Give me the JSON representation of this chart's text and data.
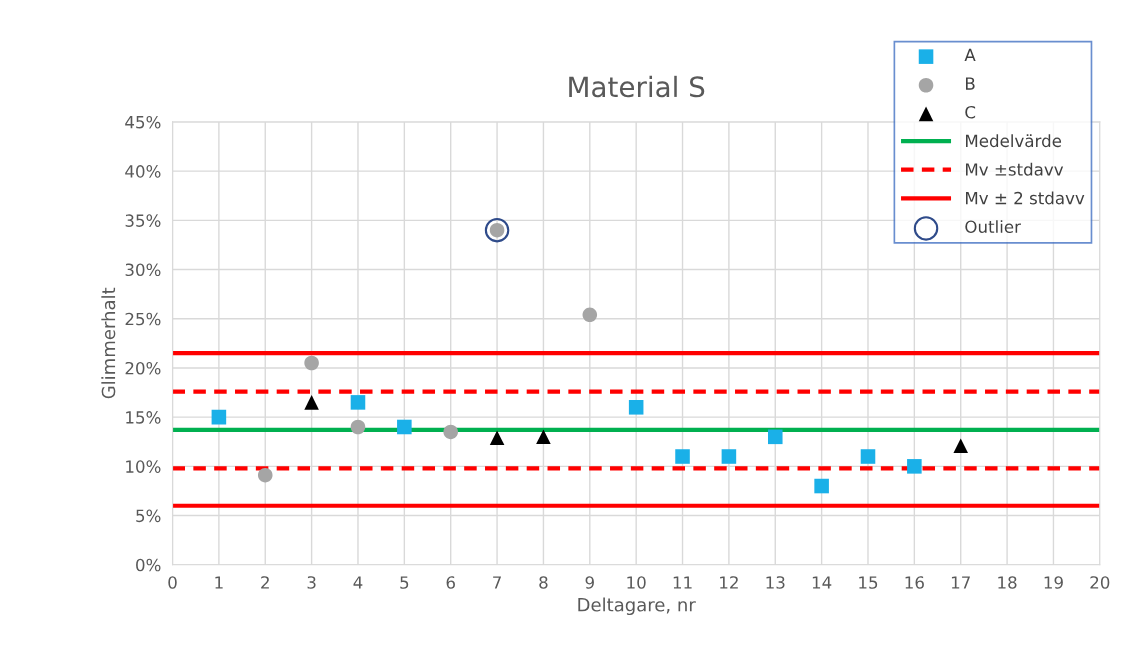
{
  "chart_data": {
    "type": "scatter",
    "title": "Material S",
    "xlabel": "Deltagare, nr",
    "ylabel": "Glimmerhalt",
    "xlim": [
      0,
      20
    ],
    "xticks": [
      0,
      1,
      2,
      3,
      4,
      5,
      6,
      7,
      8,
      9,
      10,
      11,
      12,
      13,
      14,
      15,
      16,
      17,
      18,
      19,
      20
    ],
    "ylim": [
      0,
      45
    ],
    "yticks": [
      {
        "value": 0,
        "label": "0%"
      },
      {
        "value": 5,
        "label": "5%"
      },
      {
        "value": 10,
        "label": "10%"
      },
      {
        "value": 15,
        "label": "15%"
      },
      {
        "value": 20,
        "label": "20%"
      },
      {
        "value": 25,
        "label": "25%"
      },
      {
        "value": 30,
        "label": "30%"
      },
      {
        "value": 35,
        "label": "35%"
      },
      {
        "value": 40,
        "label": "40%"
      },
      {
        "value": 45,
        "label": "45%"
      }
    ],
    "grid": true,
    "legend": "top right",
    "series": [
      {
        "name": "A",
        "color": "#1ab0e8",
        "marker": "square",
        "x": [
          1,
          4,
          5,
          10,
          11,
          12,
          13,
          14,
          15,
          16
        ],
        "values": [
          15.0,
          16.5,
          14.0,
          16.0,
          11.0,
          11.0,
          13.0,
          8.0,
          11.0,
          10.0
        ]
      },
      {
        "name": "B",
        "color": "#a5a5a5",
        "marker": "circle",
        "x": [
          2,
          3,
          4,
          6,
          7,
          9
        ],
        "values": [
          9.1,
          20.5,
          14.0,
          13.5,
          34.0,
          25.4
        ]
      },
      {
        "name": "C",
        "color": "#000000",
        "marker": "triangle",
        "x": [
          3,
          7,
          8,
          17
        ],
        "values": [
          16.5,
          12.9,
          13.0,
          12.1
        ]
      },
      {
        "name": "Medelvärde",
        "type": "line",
        "color": "#00b050",
        "line_style": "solid",
        "x": [
          0,
          20
        ],
        "values": [
          13.7,
          13.7
        ]
      },
      {
        "name": "Mv ±stdavv",
        "type": "line",
        "color": "#ff0000",
        "line_style": "dashed",
        "x": [
          0,
          20
        ],
        "values": [
          17.6,
          17.6
        ]
      },
      {
        "type": "line",
        "color": "#ff0000",
        "line_style": "dashed",
        "x": [
          0,
          20
        ],
        "values": [
          9.8,
          9.8
        ]
      },
      {
        "name": "Mv ± 2 stdavv",
        "type": "line",
        "color": "#ff0000",
        "line_style": "solid",
        "x": [
          0,
          20
        ],
        "values": [
          21.5,
          21.5
        ]
      },
      {
        "type": "line",
        "color": "#ff0000",
        "line_style": "solid",
        "x": [
          0,
          20
        ],
        "values": [
          6.0,
          6.0
        ]
      },
      {
        "name": "Outlier",
        "color": "#2f4b8a",
        "marker": "hollow_circle",
        "x": [
          7
        ],
        "values": [
          34.0
        ]
      }
    ]
  }
}
